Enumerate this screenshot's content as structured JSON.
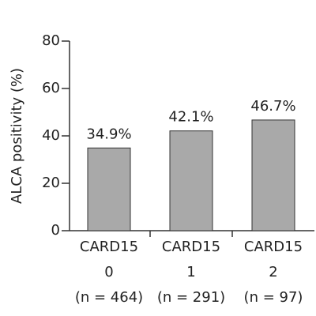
{
  "chart_data": {
    "type": "bar",
    "ylabel": "ALCA positivity (%)",
    "categories": [
      [
        "CARD15",
        "0",
        "(n = 464)"
      ],
      [
        "CARD15",
        "1",
        "(n = 291)"
      ],
      [
        "CARD15",
        "2",
        "(n = 97)"
      ]
    ],
    "values": [
      34.9,
      42.1,
      46.7
    ],
    "value_labels": [
      "34.9%",
      "42.1%",
      "46.7%"
    ],
    "color": "#a9a9a9",
    "ylim": [
      0,
      80
    ],
    "yticks": [
      0,
      20,
      40,
      60,
      80
    ],
    "grid": false
  }
}
